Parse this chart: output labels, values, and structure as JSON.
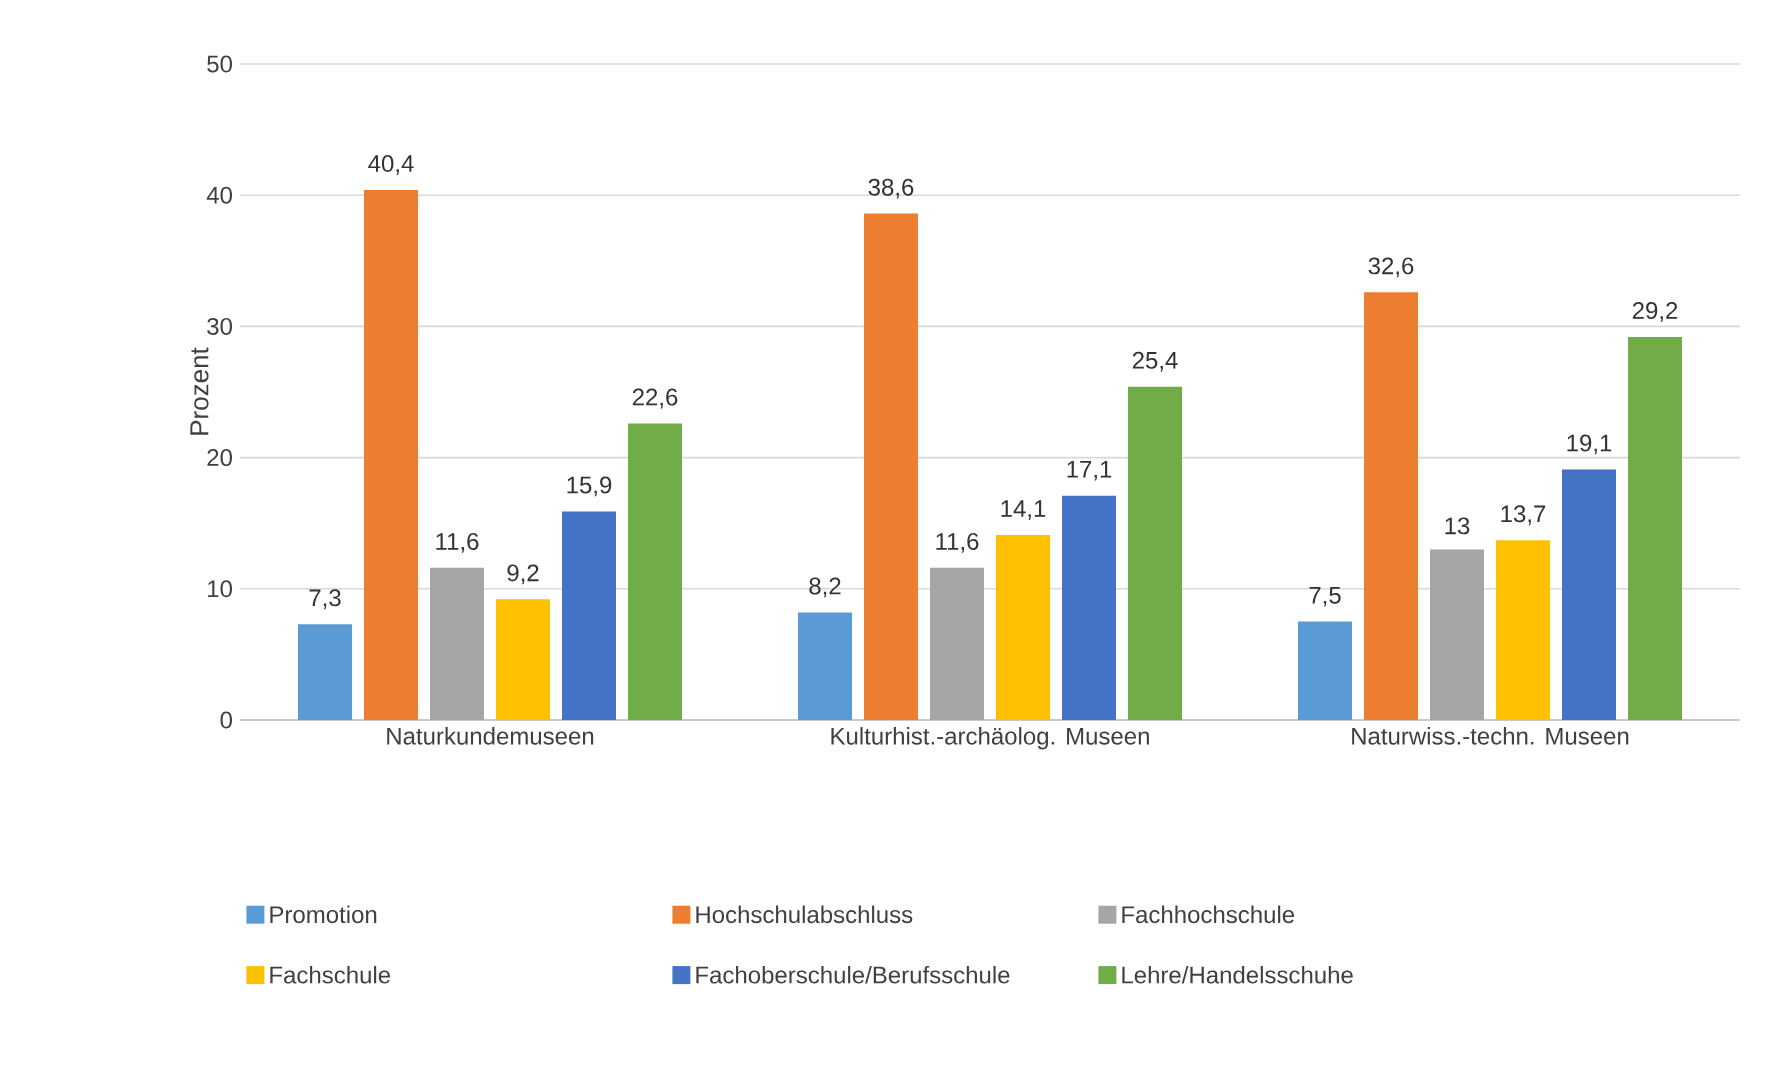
{
  "chart_data": {
    "type": "bar",
    "ylabel": "Prozent",
    "categories": [
      "Naturkundemuseen",
      "Kulturhist.-archäolog. Museen",
      "Naturwiss.-techn. Museen"
    ],
    "series": [
      {
        "name": "Promotion",
        "color": "#5b9bd5",
        "values": [
          7.3,
          8.2,
          7.5
        ],
        "value_labels": [
          "7,3",
          "8,2",
          "7,5"
        ]
      },
      {
        "name": "Hochschulabschluss",
        "color": "#ed7d31",
        "values": [
          40.4,
          38.6,
          32.6
        ],
        "value_labels": [
          "40,4",
          "38,6",
          "32,6"
        ]
      },
      {
        "name": "Fachhochschule",
        "color": "#a5a5a5",
        "values": [
          11.6,
          11.6,
          13
        ],
        "value_labels": [
          "11,6",
          "11,6",
          "13"
        ]
      },
      {
        "name": "Fachschule",
        "color": "#ffc000",
        "values": [
          9.2,
          14.1,
          13.7
        ],
        "value_labels": [
          "9,2",
          "14,1",
          "13,7"
        ]
      },
      {
        "name": "Fachoberschule/Berufsschule",
        "color": "#4472c4",
        "values": [
          15.9,
          17.1,
          19.1
        ],
        "value_labels": [
          "15,9",
          "17,1",
          "19,1"
        ]
      },
      {
        "name": "Lehre/Handelsschuhe",
        "color": "#70ad47",
        "values": [
          22.6,
          25.4,
          29.2
        ],
        "value_labels": [
          "22,6",
          "25,4",
          "29,2"
        ]
      }
    ],
    "ylim": [
      0,
      50
    ],
    "yticks": [
      0,
      10,
      20,
      30,
      40,
      50
    ],
    "grid": "y",
    "legend": "bottom"
  }
}
